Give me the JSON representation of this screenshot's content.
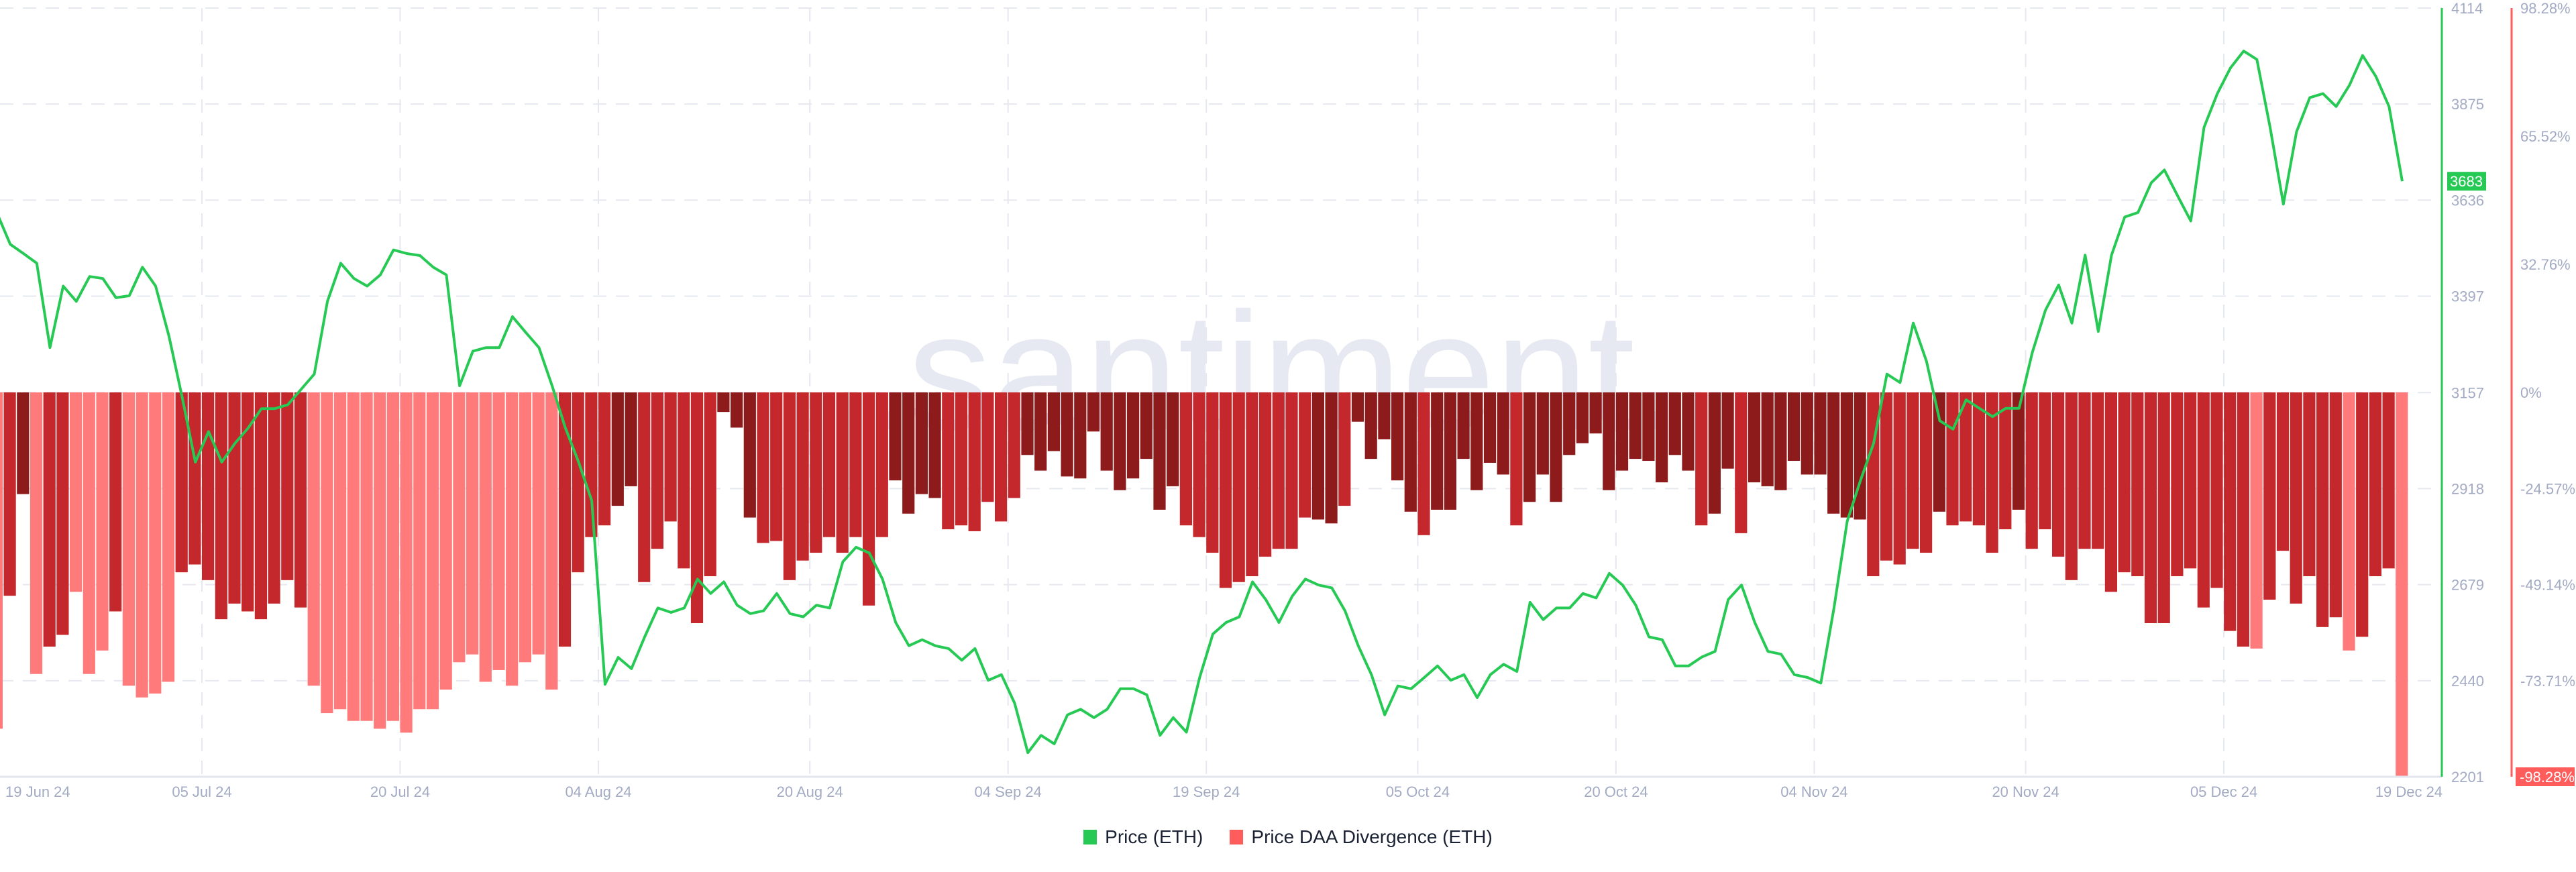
{
  "watermark": ".santiment.",
  "legend": [
    {
      "label": "Price (ETH)",
      "color": "#26c953"
    },
    {
      "label": "Price DAA Divergence (ETH)",
      "color": "#ff5c5c"
    }
  ],
  "chart_data": {
    "type": "bar+line",
    "grid": true,
    "legend_position": "bottom-center",
    "x_ticks": [
      "19 Jun 24",
      "05 Jul 24",
      "20 Jul 24",
      "04 Aug 24",
      "20 Aug 24",
      "04 Sep 24",
      "19 Sep 24",
      "05 Oct 24",
      "20 Oct 24",
      "04 Nov 24",
      "20 Nov 24",
      "05 Dec 24",
      "19 Dec 24"
    ],
    "x_tick_dates": [
      "2024-06-19",
      "2024-07-05",
      "2024-07-20",
      "2024-08-04",
      "2024-08-20",
      "2024-09-04",
      "2024-09-19",
      "2024-10-05",
      "2024-10-20",
      "2024-11-04",
      "2024-11-20",
      "2024-12-05",
      "2024-12-19"
    ],
    "x_range": [
      "2024-06-19",
      "2024-12-19"
    ],
    "price_axis": {
      "ticks": [
        "4114",
        "3875",
        "3636",
        "3397",
        "3157",
        "2918",
        "2679",
        "2440",
        "2201"
      ],
      "range": [
        2201,
        4114
      ],
      "current_value": "3683",
      "color": "#26c953"
    },
    "divergence_axis": {
      "ticks": [
        "98.28%",
        "65.52%",
        "32.76%",
        "0%",
        "-24.57%",
        "-49.14%",
        "-73.71%",
        "-98.28%"
      ],
      "tick_values": [
        98.28,
        65.52,
        32.76,
        0,
        -24.57,
        -49.14,
        -73.71,
        -98.28
      ],
      "range": [
        -98.28,
        98.28
      ],
      "current_value": "-98.28%",
      "color": "#ff5c5c"
    },
    "shade_colors": [
      "#ff7b7b",
      "#c4282d",
      "#8e1b1b"
    ],
    "series": [
      {
        "name": "Price (ETH)",
        "type": "line",
        "color": "#26c953",
        "values": [
          3603,
          3526,
          3503,
          3479,
          3269,
          3422,
          3384,
          3446,
          3441,
          3393,
          3398,
          3469,
          3422,
          3298,
          3146,
          2984,
          3060,
          2984,
          3031,
          3069,
          3117,
          3117,
          3127,
          3165,
          3203,
          3384,
          3479,
          3441,
          3422,
          3450,
          3512,
          3503,
          3498,
          3469,
          3450,
          3174,
          3260,
          3269,
          3269,
          3346,
          3307,
          3269,
          3174,
          3069,
          2984,
          2888,
          2431,
          2498,
          2470,
          2549,
          2621,
          2610,
          2621,
          2693,
          2657,
          2686,
          2628,
          2607,
          2614,
          2657,
          2607,
          2599,
          2628,
          2621,
          2736,
          2772,
          2758,
          2693,
          2585,
          2527,
          2542,
          2527,
          2520,
          2491,
          2520,
          2441,
          2455,
          2384,
          2261,
          2304,
          2283,
          2355,
          2369,
          2348,
          2369,
          2420,
          2420,
          2405,
          2304,
          2348,
          2312,
          2448,
          2556,
          2585,
          2599,
          2686,
          2642,
          2585,
          2650,
          2693,
          2678,
          2671,
          2614,
          2527,
          2455,
          2355,
          2427,
          2420,
          2448,
          2477,
          2441,
          2455,
          2398,
          2455,
          2481,
          2463,
          2635,
          2592,
          2621,
          2621,
          2657,
          2646,
          2707,
          2678,
          2628,
          2549,
          2542,
          2477,
          2477,
          2499,
          2513,
          2642,
          2678,
          2585,
          2513,
          2506,
          2455,
          2448,
          2434,
          2621,
          2837,
          2938,
          3031,
          3203,
          3182,
          3330,
          3235,
          3087,
          3066,
          3139,
          3118,
          3097,
          3118,
          3118,
          3256,
          3362,
          3425,
          3330,
          3499,
          3309,
          3499,
          3594,
          3605,
          3679,
          3711,
          3647,
          3584,
          3817,
          3901,
          3965,
          4007,
          3986,
          3817,
          3626,
          3806,
          3891,
          3901,
          3869,
          3922,
          3996,
          3944,
          3869,
          3683
        ]
      },
      {
        "name": "Price DAA Divergence (ETH)",
        "type": "bar",
        "unit": "%",
        "values": [
          -86,
          -52,
          -26,
          -72,
          -65,
          -62,
          -51,
          -72,
          -66,
          -56,
          -75,
          -78,
          -77,
          -74,
          -46,
          -44,
          -48,
          -58,
          -54,
          -56,
          -58,
          -54,
          -48,
          -55,
          -75,
          -82,
          -81,
          -84,
          -84,
          -86,
          -84,
          -87,
          -81,
          -81,
          -76,
          -69,
          -67,
          -74,
          -71,
          -75,
          -69,
          -67,
          -76,
          -65,
          -46,
          -37,
          -34,
          -29,
          -24,
          -48.5,
          -40,
          -33,
          -45,
          -59,
          -47,
          -5,
          -9,
          -32,
          -38.5,
          -38,
          -48,
          -43,
          -41,
          -37,
          -41,
          -37,
          -54.5,
          -37,
          -22.5,
          -31,
          -26,
          -27,
          -35,
          -34,
          -35.5,
          -28,
          -33,
          -27,
          -16,
          -20,
          -15,
          -21.5,
          -22,
          -10,
          -20,
          -25,
          -22,
          -17,
          -30,
          -24,
          -34,
          -37,
          -41,
          -50,
          -48.5,
          -47,
          -42,
          -40,
          -40,
          -32,
          -32.5,
          -33.5,
          -29,
          -7.5,
          -17,
          -12,
          -22.5,
          -30.5,
          -36.5,
          -30,
          -30,
          -17,
          -25,
          -18,
          -21,
          -34,
          -28,
          -21,
          -28,
          -16,
          -13,
          -10.5,
          -25,
          -20,
          -17,
          -17.5,
          -23,
          -16,
          -20,
          -34,
          -31,
          -19.5,
          -36,
          -23,
          -24,
          -25,
          -17.5,
          -21,
          -21,
          -31,
          -32,
          -32.5,
          -47,
          -43,
          -44,
          -40,
          -41,
          -30.5,
          -34,
          -33,
          -34,
          -41,
          -35,
          -30,
          -40,
          -35,
          -42,
          -48,
          -40,
          -40,
          -51,
          -46,
          -47,
          -59,
          -59,
          -47,
          -45,
          -55,
          -50,
          -61,
          -65,
          -65.5,
          -53,
          -40.5,
          -54,
          -47,
          -60,
          -57.5,
          -66,
          -62.5,
          -47,
          -45,
          -98.28
        ],
        "shades": [
          0,
          1,
          2,
          0,
          1,
          1,
          0,
          0,
          0,
          1,
          0,
          0,
          0,
          0,
          1,
          1,
          1,
          1,
          1,
          1,
          1,
          1,
          1,
          1,
          0,
          0,
          0,
          0,
          0,
          0,
          0,
          0,
          0,
          0,
          0,
          0,
          0,
          0,
          0,
          0,
          0,
          0,
          0,
          1,
          1,
          1,
          1,
          2,
          2,
          1,
          1,
          1,
          1,
          1,
          1,
          2,
          2,
          2,
          1,
          1,
          1,
          1,
          1,
          1,
          1,
          1,
          1,
          1,
          2,
          2,
          2,
          2,
          1,
          1,
          1,
          1,
          1,
          1,
          2,
          2,
          2,
          2,
          2,
          2,
          2,
          2,
          2,
          2,
          2,
          2,
          1,
          1,
          1,
          1,
          1,
          1,
          1,
          1,
          1,
          1,
          2,
          2,
          1,
          2,
          2,
          2,
          2,
          2,
          1,
          2,
          2,
          2,
          2,
          2,
          2,
          1,
          2,
          2,
          2,
          2,
          2,
          2,
          2,
          2,
          2,
          2,
          2,
          2,
          2,
          1,
          2,
          2,
          1,
          2,
          2,
          2,
          2,
          2,
          2,
          2,
          2,
          2,
          1,
          1,
          1,
          1,
          1,
          2,
          1,
          1,
          1,
          1,
          1,
          2,
          1,
          1,
          1,
          1,
          1,
          1,
          1,
          1,
          1,
          1,
          1,
          1,
          1,
          1,
          1,
          1,
          1,
          0,
          1,
          1,
          1,
          1,
          1,
          1,
          0,
          1,
          1,
          1,
          0
        ]
      }
    ]
  }
}
